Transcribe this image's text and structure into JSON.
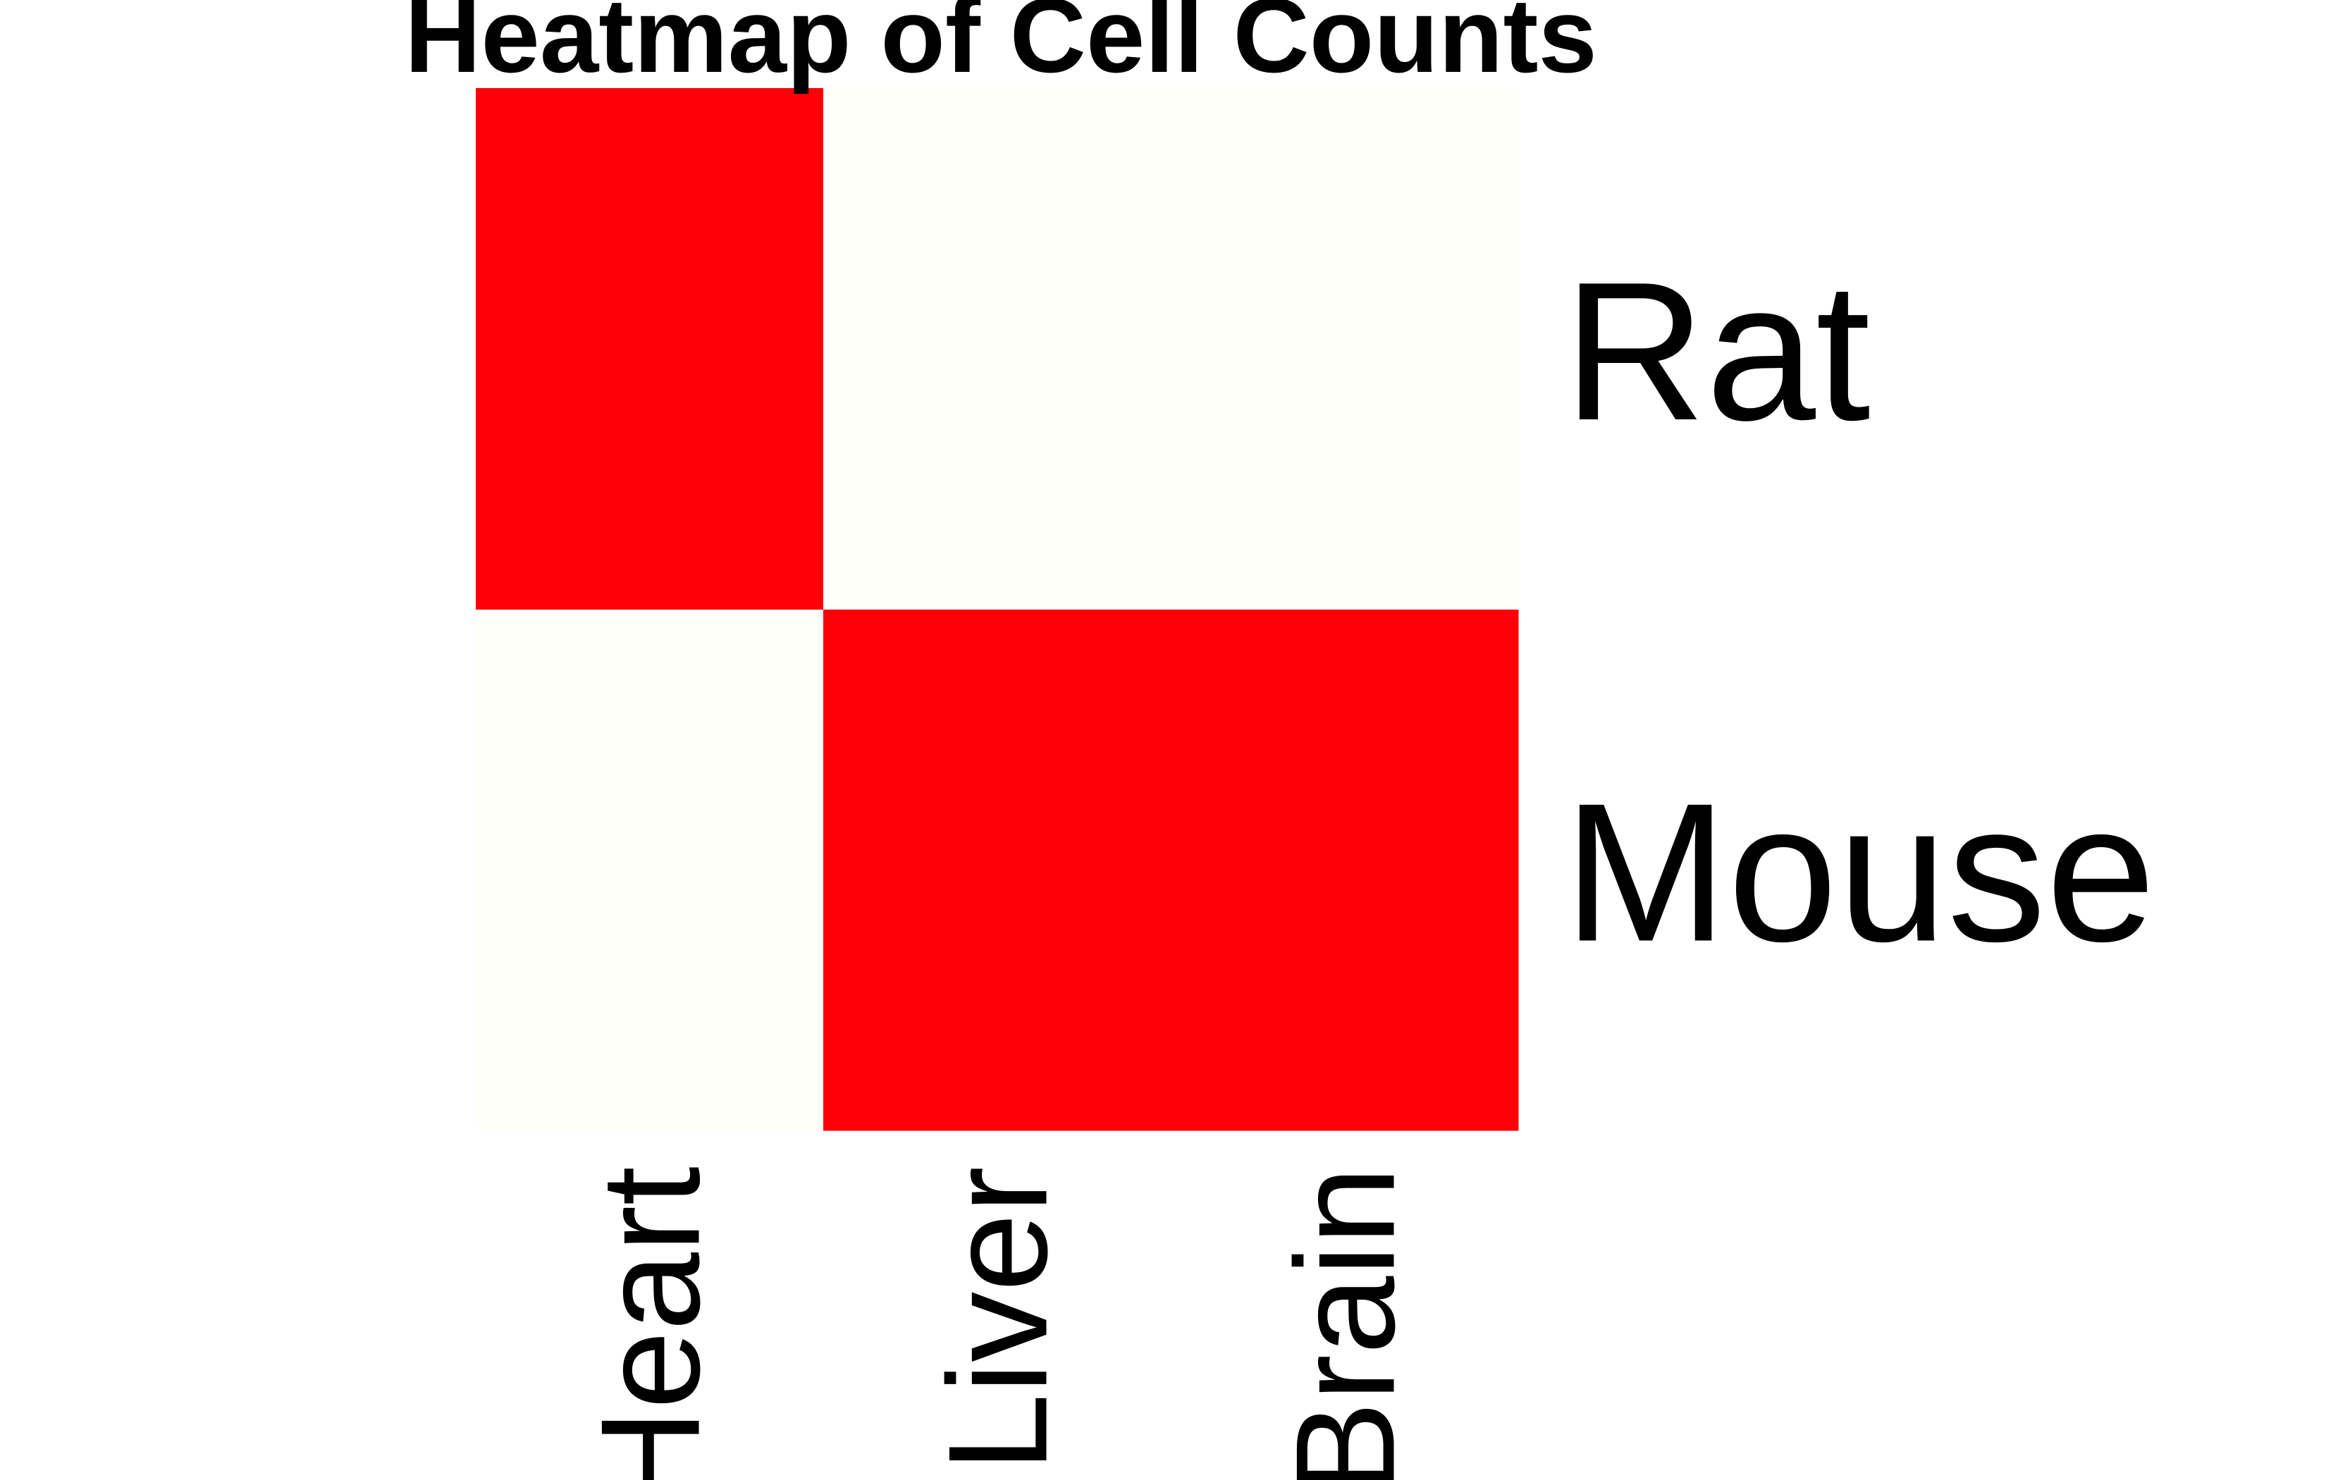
{
  "chart_data": {
    "type": "heatmap",
    "title": "Heatmap of Cell Counts",
    "rows": [
      "Rat",
      "Mouse"
    ],
    "columns": [
      "Heart",
      "Liver",
      "Brain"
    ],
    "values": [
      [
        1,
        0,
        0
      ],
      [
        0,
        1,
        1
      ]
    ],
    "colors": {
      "low": "#fffffa",
      "high": "#ff0008"
    },
    "legend": "none"
  }
}
